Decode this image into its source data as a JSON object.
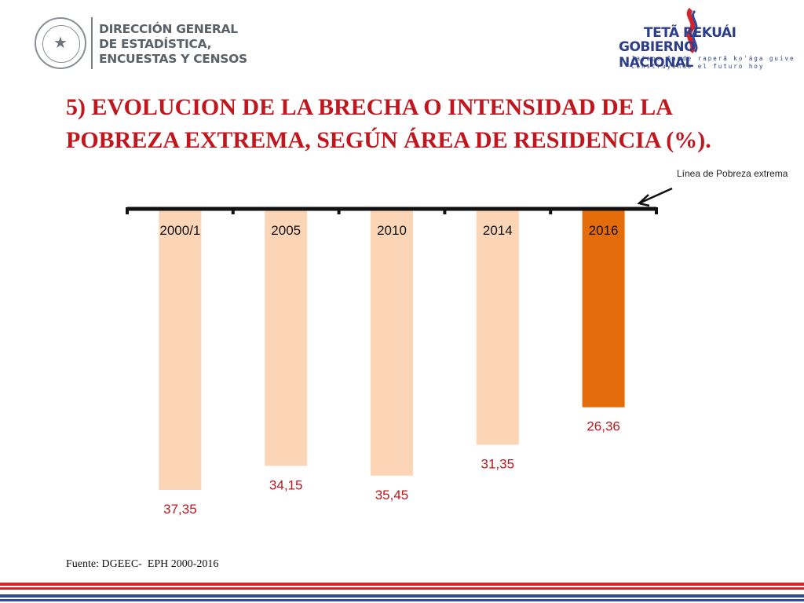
{
  "header": {
    "dgeec_lines": [
      "DIRECCIÓN GENERAL",
      "DE ESTADÍSTICA,",
      "ENCUESTAS Y CENSOS"
    ],
    "seal_icon": "paraguay-seal-icon",
    "gov_line1": "TETÃ  REKUÁI",
    "gov_line2": "GOBIERNO NACIONAL",
    "gov_sub1": "Jajapo ñande raperã ko'ága guive",
    "gov_sub2": "Construyendo el futuro hoy"
  },
  "title": {
    "line1": "5) EVOLUCION DE LA BRECHA O INTENSIDAD DE LA",
    "line2": "POBREZA EXTREMA, SEGÚN ÁREA DE RESIDENCIA (%)."
  },
  "annotation": {
    "label": "Línea de Pobreza extrema"
  },
  "source": "Fuente: DGEEC-  EPH 2000-2016",
  "colors": {
    "title": "#c0161d",
    "bar_light": "#fbd5b5",
    "bar_highlight": "#e46c0a",
    "data_label": "#c0161d",
    "stripe_red": "#d8232a",
    "stripe_blue": "#2b4a9e"
  },
  "chart_data": {
    "type": "bar",
    "orientation": "downward from baseline",
    "categories": [
      "2000/1",
      "2005",
      "2010",
      "2014",
      "2016"
    ],
    "values": [
      37.35,
      34.15,
      35.45,
      31.35,
      26.36
    ],
    "value_labels": [
      "37,35",
      "34,15",
      "35,45",
      "31,35",
      "26,36"
    ],
    "highlight_index": 4,
    "title": "",
    "xlabel": "",
    "ylabel": "",
    "ylim": [
      0,
      40
    ],
    "grid": false,
    "legend": "none"
  }
}
